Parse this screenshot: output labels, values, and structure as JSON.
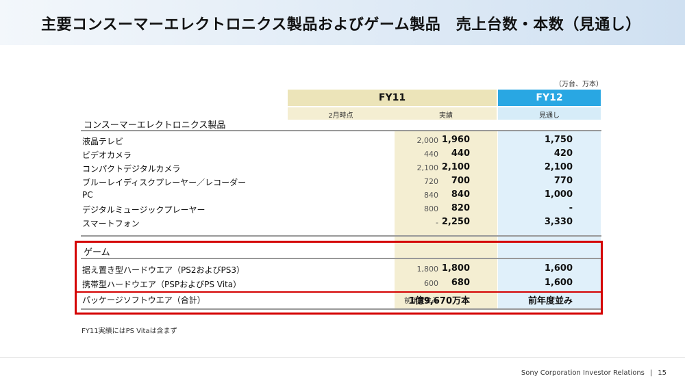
{
  "title": "主要コンスーマーエレクトロニクス製品およびゲーム製品　売上台数・本数（見通し）",
  "unit_note": "（万台、万本）",
  "columns": {
    "fy11": "FY11",
    "fy12": "FY12",
    "plan_label": "2月時点",
    "actual_label": "実績",
    "forecast_label": "見通し"
  },
  "sections": [
    {
      "name": "コンスーマーエレクトロニクス製品",
      "rows": [
        {
          "label": "液晶テレビ",
          "plan": "2,000",
          "actual": "1,960",
          "forecast": "1,750"
        },
        {
          "label": "ビデオカメラ",
          "plan": "440",
          "actual": "440",
          "forecast": "420"
        },
        {
          "label": "コンパクトデジタルカメラ",
          "plan": "2,100",
          "actual": "2,100",
          "forecast": "2,100"
        },
        {
          "label": "ブルーレイディスクプレーヤー／レコーダー",
          "plan": "720",
          "actual": "700",
          "forecast": "770"
        },
        {
          "label": "PC",
          "plan": "840",
          "actual": "840",
          "forecast": "1,000"
        },
        {
          "label": "デジタルミュージックプレーヤー",
          "plan": "800",
          "actual": "820",
          "forecast": "-"
        },
        {
          "label": "スマートフォン",
          "plan": "-",
          "actual": "2,250",
          "forecast": "3,330"
        }
      ]
    },
    {
      "name": "ゲーム",
      "rows": [
        {
          "label": "据え置き型ハードウエア（PS2およびPS3）",
          "plan": "1,800",
          "actual": "1,800",
          "forecast": "1,600"
        },
        {
          "label": "携帯型ハードウエア（PSPおよびPS Vita）",
          "plan": "600",
          "actual": "680",
          "forecast": "1,600"
        },
        {
          "label": "パッケージソフトウエア（合計）",
          "plan": "前年度並み",
          "actual": "1億9,670万本",
          "forecast": "前年度並み"
        }
      ]
    }
  ],
  "footnote": "FY11実績にはPS Vitaは含まず",
  "footer": {
    "company": "Sony Corporation  Investor Relations",
    "separator": "|",
    "page": "15"
  },
  "colors": {
    "fy11_header": "#ece4b9",
    "fy11_body": "#f4eed2",
    "fy12_header": "#29a7e3",
    "fy12_body": "#e0f0fa",
    "highlight_box": "#d40000"
  }
}
